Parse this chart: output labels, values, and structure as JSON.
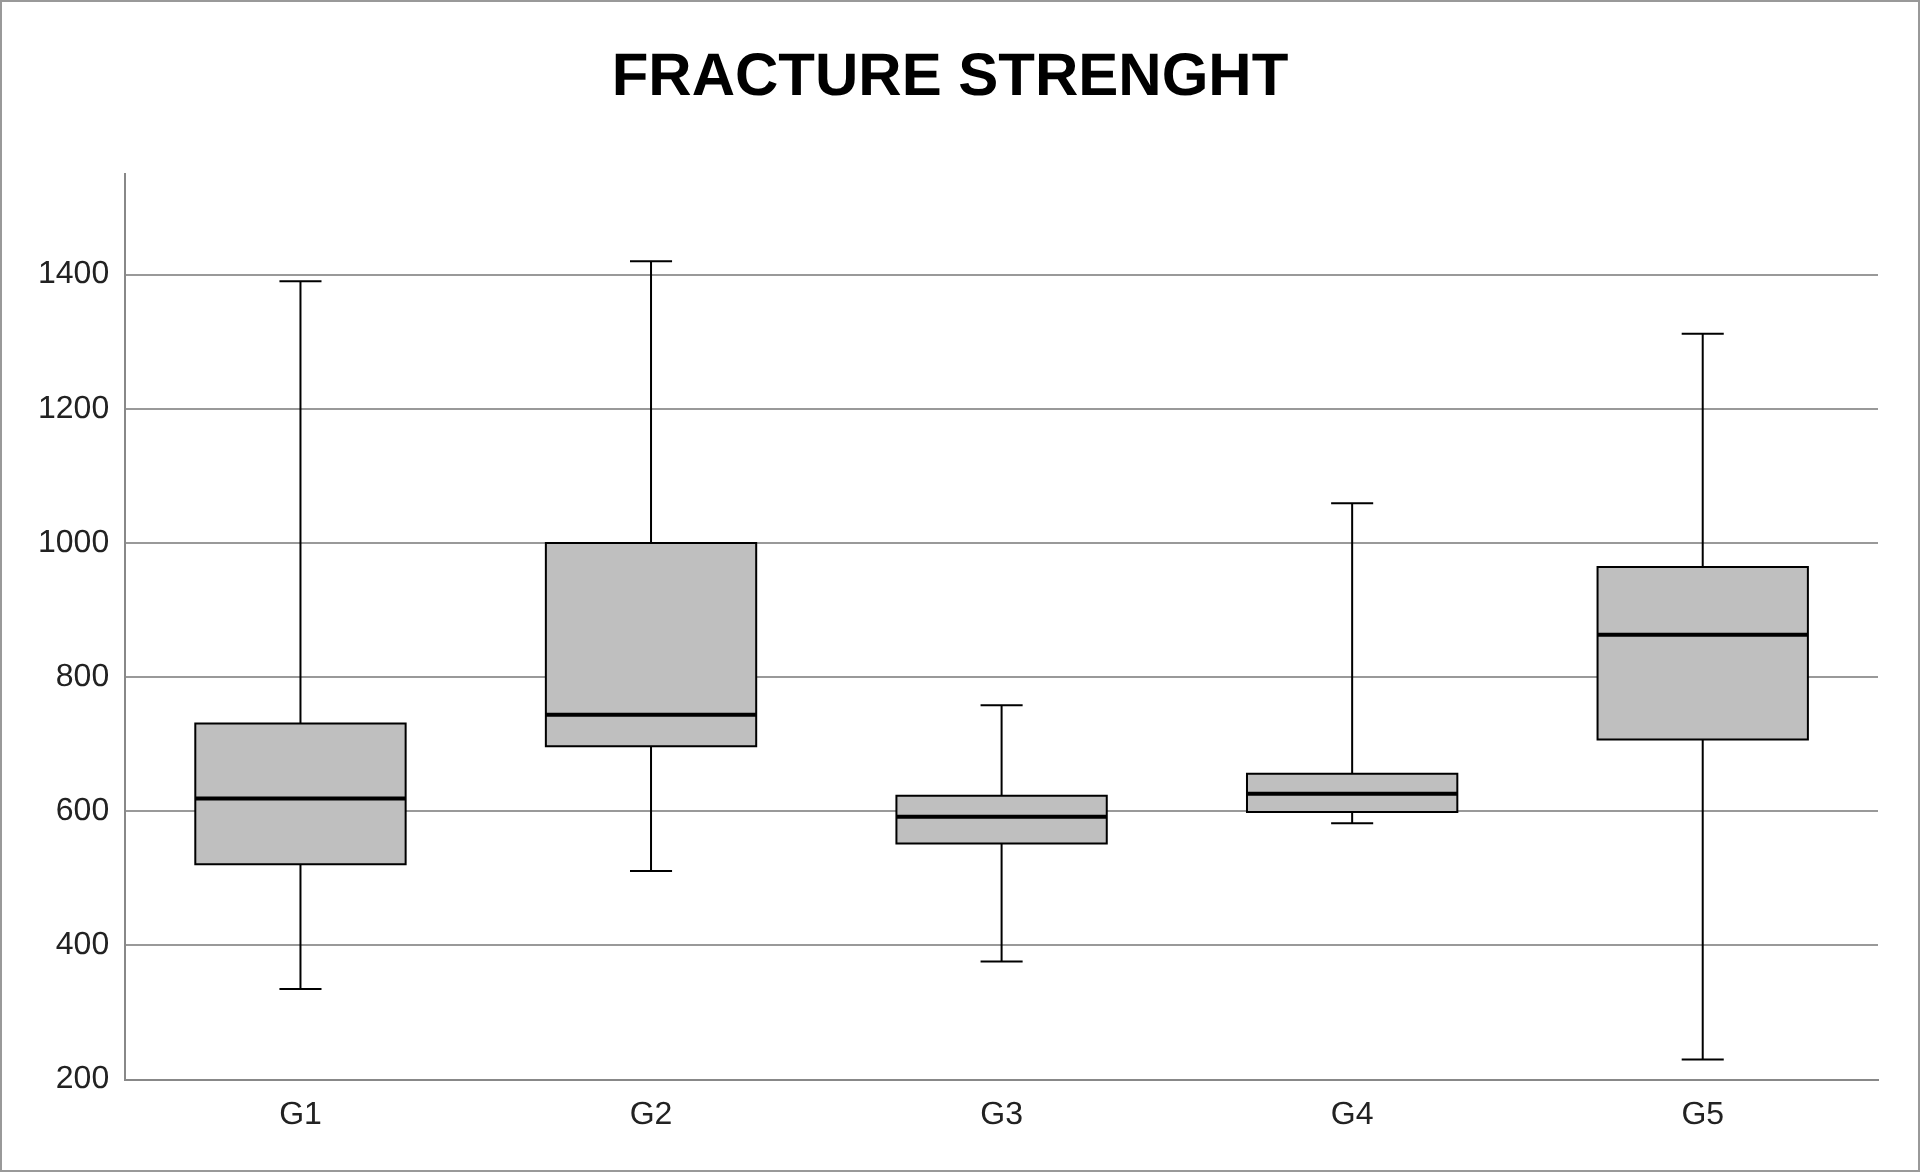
{
  "chart_data": {
    "type": "box",
    "title": "FRACTURE STRENGHT",
    "categories": [
      "G1",
      "G2",
      "G3",
      "G4",
      "G5"
    ],
    "boxes": [
      {
        "low": 335,
        "q1": 521,
        "median": 619,
        "q3": 731,
        "high": 1390
      },
      {
        "low": 511,
        "q1": 697,
        "median": 744,
        "q3": 1000,
        "high": 1420
      },
      {
        "low": 376,
        "q1": 552,
        "median": 592,
        "q3": 623,
        "high": 758
      },
      {
        "low": 582,
        "q1": 599,
        "median": 626,
        "q3": 656,
        "high": 1059
      },
      {
        "low": 230,
        "q1": 707,
        "median": 863,
        "q3": 964,
        "high": 1312
      }
    ],
    "color": "#bfbfbf",
    "ylim": [
      200,
      1550
    ],
    "yticks": [
      200,
      400,
      600,
      800,
      1000,
      1200,
      1400
    ],
    "grid": "y",
    "legend": false
  }
}
